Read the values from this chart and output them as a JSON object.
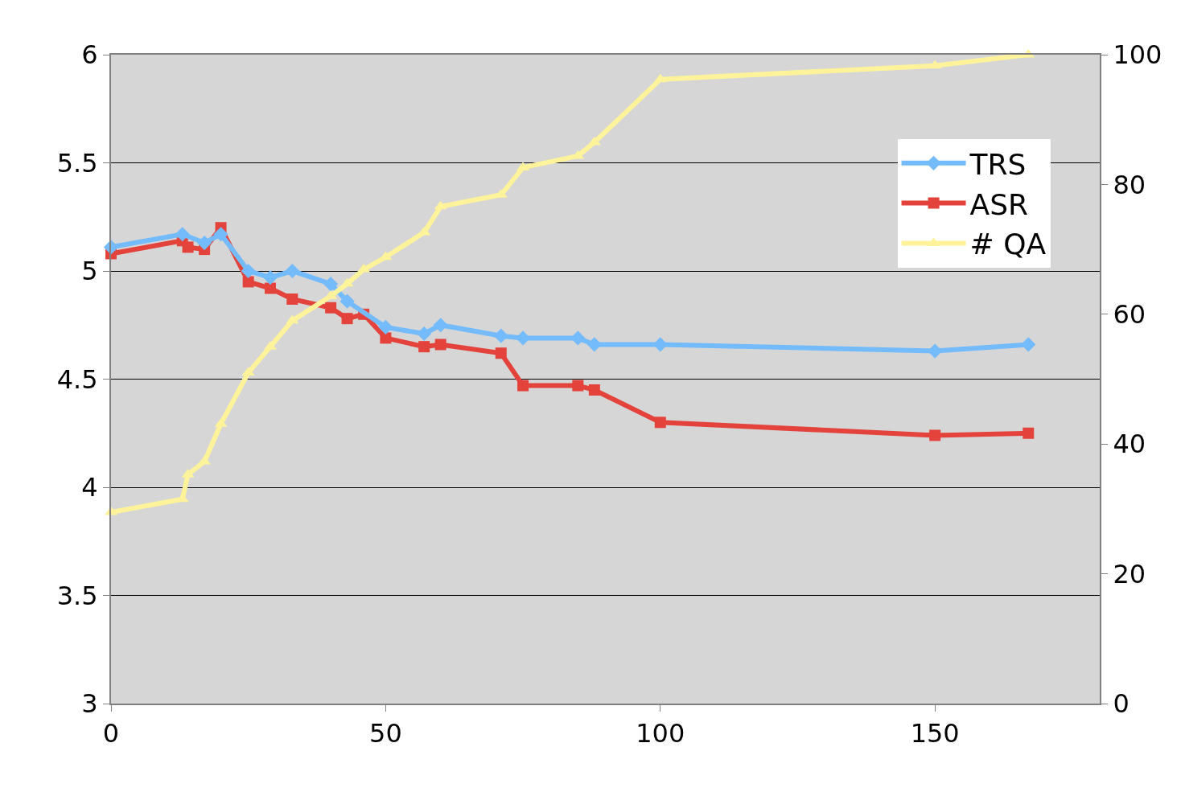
{
  "chart_data": {
    "type": "line",
    "x": [
      0,
      13,
      14,
      17,
      20,
      25,
      29,
      33,
      40,
      43,
      46,
      50,
      57,
      60,
      71,
      75,
      85,
      88,
      100,
      150,
      167
    ],
    "series": [
      {
        "name": "TRS",
        "color": "#74bbfc",
        "marker": "diamond",
        "values": [
          5.11,
          5.17,
          null,
          5.13,
          5.17,
          5.0,
          4.97,
          5.0,
          4.94,
          4.86,
          null,
          4.74,
          4.71,
          4.75,
          4.7,
          4.69,
          4.69,
          4.66,
          4.66,
          4.63,
          4.66
        ]
      },
      {
        "name": "ASR",
        "color": "#e4433c",
        "marker": "square",
        "values": [
          5.08,
          5.14,
          5.11,
          5.1,
          5.2,
          4.95,
          4.92,
          4.87,
          4.83,
          4.78,
          4.8,
          4.69,
          4.65,
          4.66,
          4.62,
          4.47,
          4.47,
          4.45,
          4.3,
          4.24,
          4.25
        ]
      },
      {
        "name": "# QA",
        "color": "#fef39a",
        "marker": "triangle",
        "axis": "y2",
        "values": [
          29.5,
          31.5,
          35.3,
          37.3,
          43.1,
          51,
          55,
          59,
          62.8,
          64.7,
          66.9,
          68.8,
          72.6,
          76.6,
          78.4,
          82.6,
          84.4,
          86.5,
          96.2,
          98.3,
          100
        ]
      }
    ],
    "xlim": [
      0,
      180
    ],
    "xticks": [
      0,
      50,
      100,
      150
    ],
    "ylim": [
      3,
      6
    ],
    "yticks": [
      3,
      3.5,
      4,
      4.5,
      5,
      5.5,
      6
    ],
    "y2lim": [
      0,
      100
    ],
    "y2ticks": [
      0,
      20,
      40,
      60,
      80,
      100
    ],
    "grid": "y",
    "legend": "top right"
  }
}
